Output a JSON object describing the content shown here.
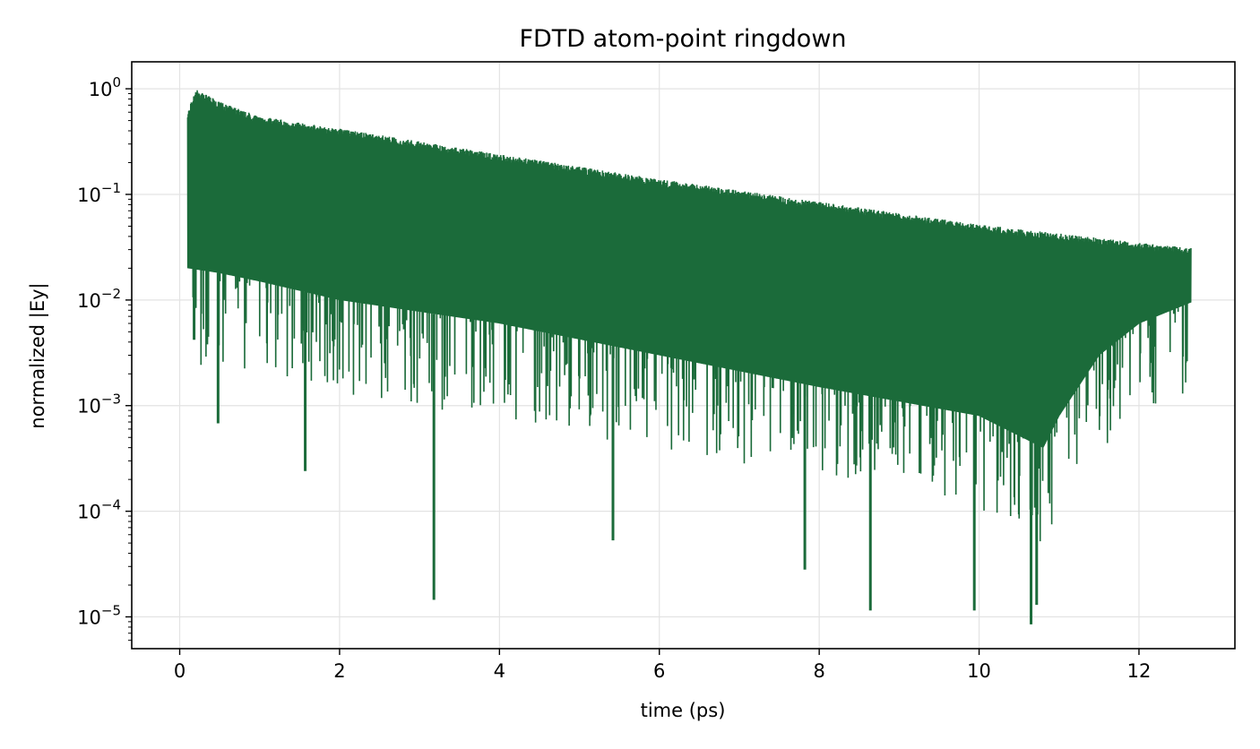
{
  "chart_data": {
    "type": "line",
    "title": "FDTD atom-point ringdown",
    "xlabel": "time (ps)",
    "ylabel": "normalized |Ey|",
    "xscale": "linear",
    "yscale": "log",
    "xlim": [
      -0.6,
      13.2
    ],
    "ylim": [
      5e-06,
      1.8
    ],
    "x_ticks": [
      0,
      2,
      4,
      6,
      8,
      10,
      12
    ],
    "x_tick_labels": [
      "0",
      "2",
      "4",
      "6",
      "8",
      "10",
      "12"
    ],
    "y_ticks": [
      1e-05,
      0.0001,
      0.001,
      0.01,
      0.1,
      1
    ],
    "y_tick_labels": [
      {
        "base": "10",
        "exp": "−5"
      },
      {
        "base": "10",
        "exp": "−4"
      },
      {
        "base": "10",
        "exp": "−3"
      },
      {
        "base": "10",
        "exp": "−2"
      },
      {
        "base": "10",
        "exp": "−1"
      },
      {
        "base": "10",
        "exp": "0"
      }
    ],
    "grid": true,
    "legend": "none",
    "series": [
      {
        "color": "#1b6b3a",
        "x_range": [
          0.1,
          12.65
        ],
        "upper_envelope": {
          "t": [
            0.1,
            0.2,
            0.5,
            1,
            2,
            4,
            6,
            8,
            10,
            12,
            12.65
          ],
          "value": [
            0.6,
            1.0,
            0.75,
            0.55,
            0.42,
            0.24,
            0.14,
            0.085,
            0.052,
            0.035,
            0.031
          ]
        },
        "lower_envelope": {
          "t": [
            0.1,
            0.5,
            1,
            2,
            4,
            6,
            8,
            10,
            10.8,
            11,
            11.5,
            12,
            12.65
          ],
          "value": [
            0.02,
            0.018,
            0.015,
            0.01,
            0.006,
            0.003,
            0.0015,
            0.0008,
            0.0004,
            0.0008,
            0.003,
            0.006,
            0.0095
          ]
        },
        "notable_minima": [
          {
            "t": 0.18,
            "value": 0.0042
          },
          {
            "t": 0.48,
            "value": 0.00068
          },
          {
            "t": 1.57,
            "value": 0.00024
          },
          {
            "t": 3.18,
            "value": 1.45e-05
          },
          {
            "t": 5.42,
            "value": 5.3e-05
          },
          {
            "t": 7.82,
            "value": 2.8e-05
          },
          {
            "t": 8.64,
            "value": 1.15e-05
          },
          {
            "t": 9.94,
            "value": 1.15e-05
          },
          {
            "t": 10.65,
            "value": 8.5e-06
          },
          {
            "t": 10.72,
            "value": 1.3e-05
          }
        ]
      }
    ]
  }
}
